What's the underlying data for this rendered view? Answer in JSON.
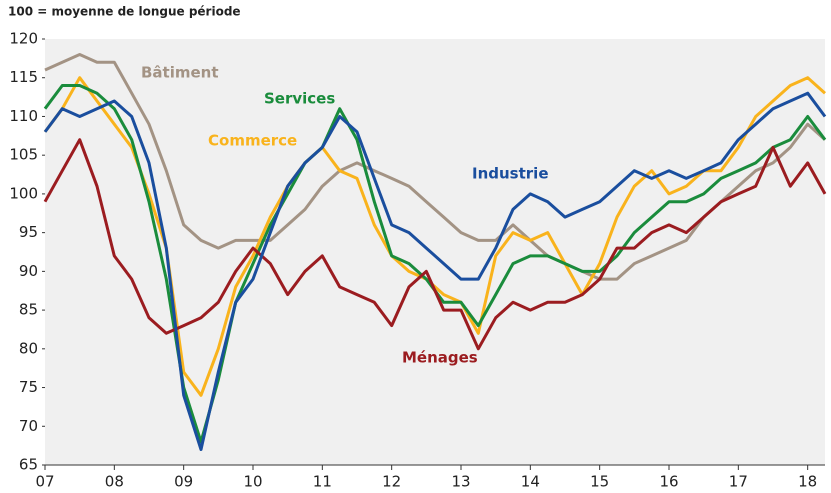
{
  "chart_data": {
    "type": "line",
    "subtitle": "100 = moyenne de longue période",
    "x": [
      7,
      7.25,
      7.5,
      7.75,
      8,
      8.25,
      8.5,
      8.75,
      9,
      9.25,
      9.5,
      9.75,
      10,
      10.25,
      10.5,
      10.75,
      11,
      11.25,
      11.5,
      11.75,
      12,
      12.25,
      12.5,
      12.75,
      13,
      13.25,
      13.5,
      13.75,
      14,
      14.25,
      14.5,
      14.75,
      15,
      15.25,
      15.5,
      15.75,
      16,
      16.25,
      16.5,
      16.75,
      17,
      17.25,
      17.5,
      17.75,
      18,
      18.25
    ],
    "series": [
      {
        "name": "Bâtiment",
        "color": "#a39384",
        "values": [
          116,
          117,
          118,
          117,
          117,
          113,
          109,
          103,
          96,
          94,
          93,
          94,
          94,
          94,
          96,
          98,
          101,
          103,
          104,
          103,
          102,
          101,
          99,
          97,
          95,
          94,
          94,
          96,
          94,
          92,
          91,
          90,
          89,
          89,
          91,
          92,
          93,
          94,
          97,
          99,
          101,
          103,
          104,
          106,
          109,
          107
        ]
      },
      {
        "name": "Commerce",
        "color": "#f9b31c",
        "values": [
          108,
          111,
          115,
          112,
          109,
          106,
          100,
          93,
          77,
          74,
          80,
          88,
          92,
          97,
          101,
          104,
          106,
          103,
          102,
          96,
          92,
          90,
          89,
          87,
          86,
          82,
          92,
          95,
          94,
          95,
          91,
          87,
          91,
          97,
          101,
          103,
          100,
          101,
          103,
          103,
          106,
          110,
          112,
          114,
          115,
          113
        ]
      },
      {
        "name": "Services",
        "color": "#1a8c3c",
        "values": [
          111,
          114,
          114,
          113,
          111,
          107,
          99,
          89,
          75,
          68,
          76,
          86,
          91,
          96,
          100,
          104,
          106,
          111,
          107,
          99,
          92,
          91,
          89,
          86,
          86,
          83,
          87,
          91,
          92,
          92,
          91,
          90,
          90,
          92,
          95,
          97,
          99,
          99,
          100,
          102,
          103,
          104,
          106,
          107,
          110,
          107
        ]
      },
      {
        "name": "Ménages",
        "color": "#9b1c20",
        "values": [
          99,
          103,
          107,
          101,
          92,
          89,
          84,
          82,
          83,
          84,
          86,
          90,
          93,
          91,
          87,
          90,
          92,
          88,
          87,
          86,
          83,
          88,
          90,
          85,
          85,
          80,
          84,
          86,
          85,
          86,
          86,
          87,
          89,
          93,
          93,
          95,
          96,
          95,
          97,
          99,
          100,
          101,
          106,
          101,
          104,
          100
        ]
      },
      {
        "name": "Industrie",
        "color": "#1a4e9e",
        "values": [
          108,
          111,
          110,
          111,
          112,
          110,
          104,
          93,
          74,
          67,
          77,
          86,
          89,
          95,
          101,
          104,
          106,
          110,
          108,
          102,
          96,
          95,
          93,
          91,
          89,
          89,
          93,
          98,
          100,
          99,
          97,
          98,
          99,
          101,
          103,
          102,
          103,
          102,
          103,
          104,
          107,
          109,
          111,
          112,
          113,
          110
        ]
      }
    ],
    "xlim": [
      7,
      18.25
    ],
    "xticks": [
      {
        "value": 7,
        "label": "07"
      },
      {
        "value": 8,
        "label": "08"
      },
      {
        "value": 9,
        "label": "09"
      },
      10,
      11,
      12,
      13,
      14,
      15,
      16,
      17,
      18
    ],
    "ylim": [
      65,
      120
    ],
    "yticks": [
      65,
      70,
      75,
      80,
      85,
      90,
      95,
      100,
      105,
      110,
      115,
      120
    ],
    "grid": false
  }
}
